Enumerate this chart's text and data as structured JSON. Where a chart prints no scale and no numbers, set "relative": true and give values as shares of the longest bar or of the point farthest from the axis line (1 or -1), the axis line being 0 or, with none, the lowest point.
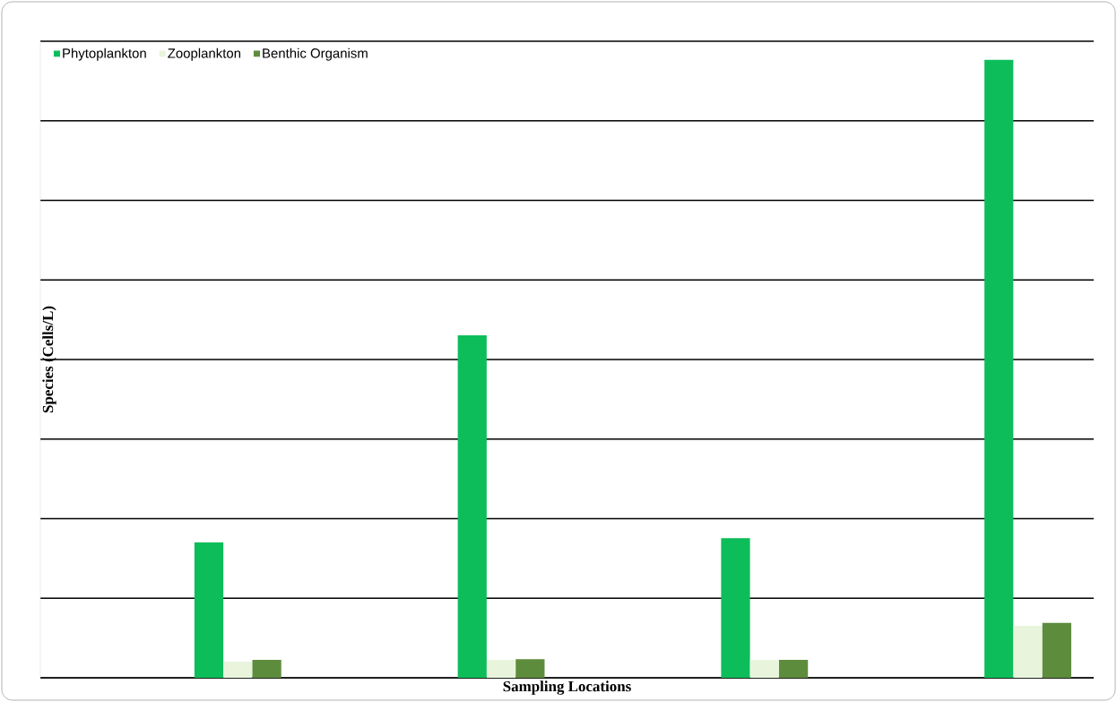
{
  "chart_data": {
    "type": "bar",
    "relative": true,
    "xlabel": "Sampling Locations",
    "ylabel": "Species (Cells/L)",
    "categories": [
      null,
      null,
      null,
      null
    ],
    "grid": "y",
    "legend": "top left",
    "series": [
      {
        "name": "Phytoplankton",
        "color": "#0dbd5a",
        "values": [
          0.219,
          0.554,
          0.226,
          1
        ]
      },
      {
        "name": "Zooplankton",
        "color": "#e8f5dc",
        "values": [
          0.026,
          0.029,
          0.029,
          0.084
        ]
      },
      {
        "name": "Benthic Organism",
        "color": "#5e8c3d",
        "values": [
          0.029,
          0.03,
          0.029,
          0.089
        ]
      }
    ]
  }
}
